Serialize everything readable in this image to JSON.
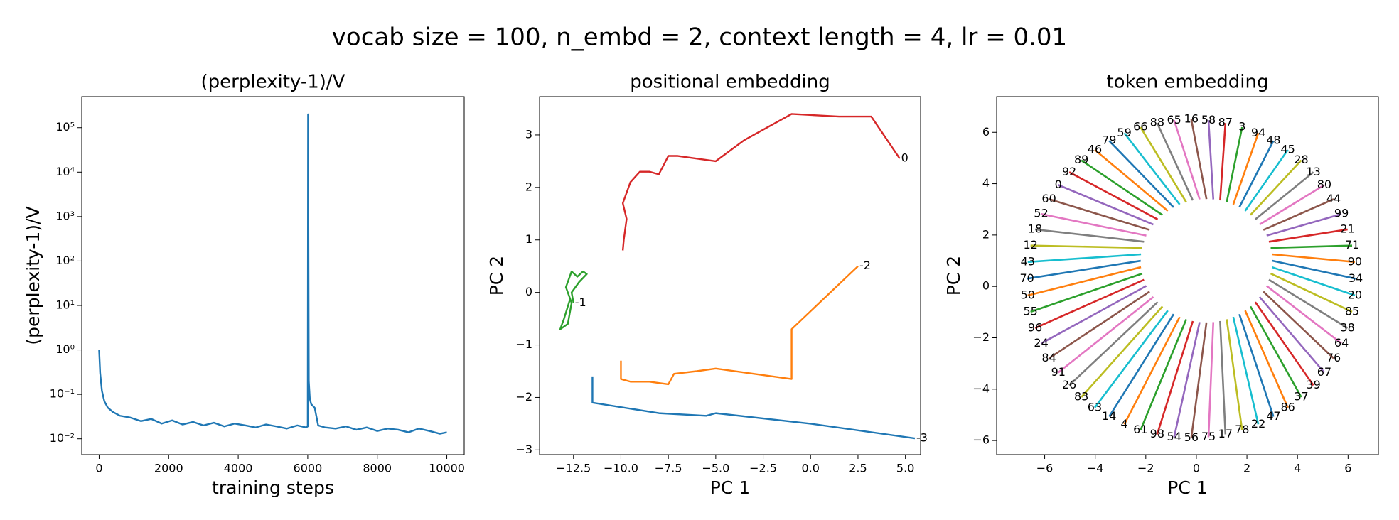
{
  "title": "vocab size = 100, n_embd = 2, context length = 4, lr = 0.01",
  "chart_data": [
    {
      "type": "line",
      "title": "(perplexity-1)/V",
      "xlabel": "training steps",
      "ylabel": "(perplexity-1)/V",
      "yscale": "log",
      "xlim": [
        -500,
        10500
      ],
      "ylim": [
        0.0044,
        500000
      ],
      "xticks": [
        0,
        2000,
        4000,
        6000,
        8000,
        10000
      ],
      "yticks": [
        {
          "value": 0.01,
          "label": "10⁻²"
        },
        {
          "value": 0.1,
          "label": "10⁻¹"
        },
        {
          "value": 1,
          "label": "10⁰"
        },
        {
          "value": 10,
          "label": "10¹"
        },
        {
          "value": 100,
          "label": "10²"
        },
        {
          "value": 1000,
          "label": "10³"
        },
        {
          "value": 10000,
          "label": "10⁴"
        },
        {
          "value": 100000,
          "label": "10⁵"
        }
      ],
      "end_labels": false,
      "series": [
        {
          "color": "#1f77b4",
          "x": [
            0,
            30,
            80,
            150,
            250,
            400,
            600,
            900,
            1200,
            1500,
            1800,
            2100,
            2400,
            2700,
            3000,
            3300,
            3600,
            3900,
            4200,
            4500,
            4800,
            5100,
            5400,
            5700,
            5950,
            6000,
            6010,
            6030,
            6060,
            6100,
            6200,
            6300,
            6500,
            6800,
            7100,
            7400,
            7700,
            8000,
            8300,
            8600,
            8900,
            9200,
            9500,
            9800,
            10000
          ],
          "values": [
            1.0,
            0.3,
            0.12,
            0.07,
            0.05,
            0.04,
            0.033,
            0.03,
            0.025,
            0.028,
            0.022,
            0.026,
            0.021,
            0.024,
            0.02,
            0.023,
            0.019,
            0.022,
            0.02,
            0.018,
            0.021,
            0.019,
            0.017,
            0.02,
            0.018,
            0.019,
            200000,
            0.2,
            0.08,
            0.06,
            0.05,
            0.02,
            0.018,
            0.017,
            0.019,
            0.016,
            0.018,
            0.015,
            0.017,
            0.016,
            0.014,
            0.017,
            0.015,
            0.013,
            0.014
          ]
        }
      ]
    },
    {
      "type": "line",
      "title": "positional embedding",
      "xlabel": "PC 1",
      "ylabel": "PC 2",
      "yscale": "linear",
      "xlim": [
        -14.29,
        5.8
      ],
      "ylim": [
        -3.09,
        3.73
      ],
      "xticks": [
        {
          "value": -12.5,
          "label": "−12.5"
        },
        {
          "value": -10,
          "label": "−10.0"
        },
        {
          "value": -7.5,
          "label": "−7.5"
        },
        {
          "value": -5,
          "label": "−5.0"
        },
        {
          "value": -2.5,
          "label": "−2.5"
        },
        {
          "value": 0,
          "label": "0.0"
        },
        {
          "value": 2.5,
          "label": "2.5"
        },
        {
          "value": 5,
          "label": "5.0"
        }
      ],
      "yticks": [
        {
          "value": -3,
          "label": "−3"
        },
        {
          "value": -2,
          "label": "−2"
        },
        {
          "value": -1,
          "label": "−1"
        },
        0,
        1,
        2,
        3
      ],
      "end_labels": true,
      "series": [
        {
          "name": "-3",
          "color": "#1f77b4",
          "x": [
            -11.5,
            -11.5,
            -8,
            -5.5,
            -5,
            0,
            5.5
          ],
          "values": [
            -1.6,
            -2.1,
            -2.3,
            -2.35,
            -2.3,
            -2.5,
            -2.78
          ]
        },
        {
          "name": "-2",
          "color": "#ff7f0e",
          "x": [
            -10,
            -10,
            -9.5,
            -8.5,
            -7.5,
            -7.2,
            -6,
            -5,
            -3,
            -1,
            -1,
            2.5
          ],
          "values": [
            -1.3,
            -1.65,
            -1.7,
            -1.7,
            -1.75,
            -1.55,
            -1.5,
            -1.45,
            -1.55,
            -1.65,
            -0.7,
            0.5
          ]
        },
        {
          "name": "-1",
          "color": "#2ca02c",
          "x": [
            -12.7,
            -13,
            -13.2,
            -12.8,
            -12.6,
            -12.9,
            -12.6,
            -12.3,
            -12,
            -11.8,
            -12.2,
            -12.6,
            -12.5
          ],
          "values": [
            -0.15,
            -0.5,
            -0.7,
            -0.6,
            -0.2,
            0.1,
            0.4,
            0.3,
            0.4,
            0.35,
            0.2,
            0.0,
            -0.2
          ]
        },
        {
          "name": "0",
          "color": "#d62728",
          "x": [
            -9.9,
            -9.85,
            -9.7,
            -9.9,
            -9.5,
            -9,
            -8.5,
            -8,
            -7.5,
            -7,
            -5,
            -3.5,
            -1,
            1.5,
            3.2,
            4.7
          ],
          "values": [
            0.8,
            1.0,
            1.4,
            1.7,
            2.1,
            2.3,
            2.3,
            2.25,
            2.6,
            2.6,
            2.5,
            2.9,
            3.4,
            3.35,
            3.35,
            2.55
          ]
        }
      ]
    },
    {
      "type": "line",
      "title": "token embedding",
      "xlabel": "PC 1",
      "ylabel": "PC 2",
      "yscale": "linear",
      "xlim": [
        -7.9,
        7.2
      ],
      "ylim": [
        -6.55,
        7.39
      ],
      "xticks": [
        {
          "value": -6,
          "label": "−6"
        },
        {
          "value": -4,
          "label": "−4"
        },
        {
          "value": -2,
          "label": "−2"
        },
        0,
        2,
        4,
        6
      ],
      "yticks": [
        {
          "value": -6,
          "label": "−6"
        },
        {
          "value": -4,
          "label": "−4"
        },
        {
          "value": -2,
          "label": "−2"
        },
        0,
        2,
        4,
        6
      ],
      "end_labels": true,
      "series": [
        {
          "name": "34",
          "color": "#1f77b4",
          "x": [
            3.0,
            6.3
          ],
          "values": [
            1.0,
            0.3
          ]
        },
        {
          "name": "90",
          "color": "#ff7f0e",
          "x": [
            2.99,
            6.27
          ],
          "values": [
            1.25,
            0.95
          ]
        },
        {
          "name": "71",
          "color": "#2ca02c",
          "x": [
            2.94,
            6.16
          ],
          "values": [
            1.5,
            1.59
          ]
        },
        {
          "name": "21",
          "color": "#d62728",
          "x": [
            2.87,
            5.98
          ],
          "values": [
            1.74,
            2.22
          ]
        },
        {
          "name": "99",
          "color": "#9467bd",
          "x": [
            2.78,
            5.74
          ],
          "values": [
            1.98,
            2.82
          ]
        },
        {
          "name": "44",
          "color": "#8c564b",
          "x": [
            2.65,
            5.43
          ],
          "values": [
            2.2,
            3.4
          ]
        },
        {
          "name": "80",
          "color": "#e377c2",
          "x": [
            2.5,
            5.06
          ],
          "values": [
            2.41,
            3.95
          ]
        },
        {
          "name": "13",
          "color": "#7f7f7f",
          "x": [
            2.33,
            4.63
          ],
          "values": [
            2.61,
            4.45
          ]
        },
        {
          "name": "28",
          "color": "#bcbd22",
          "x": [
            2.14,
            4.15
          ],
          "values": [
            2.78,
            4.91
          ]
        },
        {
          "name": "45",
          "color": "#17becf",
          "x": [
            1.93,
            3.62
          ],
          "values": [
            2.94,
            5.32
          ]
        },
        {
          "name": "48",
          "color": "#1f77b4",
          "x": [
            1.7,
            3.05
          ],
          "values": [
            3.08,
            5.67
          ]
        },
        {
          "name": "94",
          "color": "#ff7f0e",
          "x": [
            1.46,
            2.45
          ],
          "values": [
            3.19,
            5.97
          ]
        },
        {
          "name": "3",
          "color": "#2ca02c",
          "x": [
            1.2,
            1.81
          ],
          "values": [
            3.28,
            6.2
          ]
        },
        {
          "name": "87",
          "color": "#d62728",
          "x": [
            0.94,
            1.15
          ],
          "values": [
            3.35,
            6.36
          ]
        },
        {
          "name": "58",
          "color": "#9467bd",
          "x": [
            0.67,
            0.48
          ],
          "values": [
            3.39,
            6.47
          ]
        },
        {
          "name": "16",
          "color": "#8c564b",
          "x": [
            0.4,
            -0.2
          ],
          "values": [
            3.4,
            6.5
          ]
        },
        {
          "name": "65",
          "color": "#e377c2",
          "x": [
            0.13,
            -0.88
          ],
          "values": [
            3.39,
            6.47
          ]
        },
        {
          "name": "88",
          "color": "#7f7f7f",
          "x": [
            -0.14,
            -1.55
          ],
          "values": [
            3.35,
            6.36
          ]
        },
        {
          "name": "66",
          "color": "#bcbd22",
          "x": [
            -0.4,
            -2.21
          ],
          "values": [
            3.28,
            6.2
          ]
        },
        {
          "name": "59",
          "color": "#17becf",
          "x": [
            -0.66,
            -2.85
          ],
          "values": [
            3.19,
            5.97
          ]
        },
        {
          "name": "79",
          "color": "#1f77b4",
          "x": [
            -0.9,
            -3.45
          ],
          "values": [
            3.08,
            5.67
          ]
        },
        {
          "name": "46",
          "color": "#ff7f0e",
          "x": [
            -1.13,
            -4.02
          ],
          "values": [
            2.94,
            5.32
          ]
        },
        {
          "name": "89",
          "color": "#2ca02c",
          "x": [
            -1.34,
            -4.55
          ],
          "values": [
            2.78,
            4.91
          ]
        },
        {
          "name": "92",
          "color": "#d62728",
          "x": [
            -1.53,
            -5.03
          ],
          "values": [
            2.61,
            4.45
          ]
        },
        {
          "name": "0",
          "color": "#9467bd",
          "x": [
            -1.7,
            -5.46
          ],
          "values": [
            2.41,
            3.95
          ]
        },
        {
          "name": "60",
          "color": "#8c564b",
          "x": [
            -1.85,
            -5.83
          ],
          "values": [
            2.2,
            3.4
          ]
        },
        {
          "name": "52",
          "color": "#e377c2",
          "x": [
            -1.98,
            -6.14
          ],
          "values": [
            1.98,
            2.82
          ]
        },
        {
          "name": "18",
          "color": "#7f7f7f",
          "x": [
            -2.07,
            -6.38
          ],
          "values": [
            1.74,
            2.22
          ]
        },
        {
          "name": "12",
          "color": "#bcbd22",
          "x": [
            -2.14,
            -6.56
          ],
          "values": [
            1.5,
            1.59
          ]
        },
        {
          "name": "43",
          "color": "#17becf",
          "x": [
            -2.19,
            -6.67
          ],
          "values": [
            1.25,
            0.95
          ]
        },
        {
          "name": "70",
          "color": "#1f77b4",
          "x": [
            -2.2,
            -6.7
          ],
          "values": [
            1.0,
            0.3
          ]
        },
        {
          "name": "50",
          "color": "#ff7f0e",
          "x": [
            -2.19,
            -6.67
          ],
          "values": [
            0.75,
            -0.35
          ]
        },
        {
          "name": "55",
          "color": "#2ca02c",
          "x": [
            -2.14,
            -6.56
          ],
          "values": [
            0.5,
            -0.99
          ]
        },
        {
          "name": "96",
          "color": "#d62728",
          "x": [
            -2.07,
            -6.38
          ],
          "values": [
            0.26,
            -1.62
          ]
        },
        {
          "name": "24",
          "color": "#9467bd",
          "x": [
            -1.98,
            -6.14
          ],
          "values": [
            0.02,
            -2.22
          ]
        },
        {
          "name": "84",
          "color": "#8c564b",
          "x": [
            -1.85,
            -5.83
          ],
          "values": [
            -0.2,
            -2.8
          ]
        },
        {
          "name": "91",
          "color": "#e377c2",
          "x": [
            -1.7,
            -5.46
          ],
          "values": [
            -0.41,
            -3.35
          ]
        },
        {
          "name": "26",
          "color": "#7f7f7f",
          "x": [
            -1.53,
            -5.03
          ],
          "values": [
            -0.61,
            -3.85
          ]
        },
        {
          "name": "83",
          "color": "#bcbd22",
          "x": [
            -1.34,
            -4.55
          ],
          "values": [
            -0.78,
            -4.31
          ]
        },
        {
          "name": "63",
          "color": "#17becf",
          "x": [
            -1.13,
            -4.02
          ],
          "values": [
            -0.94,
            -4.72
          ]
        },
        {
          "name": "14",
          "color": "#1f77b4",
          "x": [
            -0.9,
            -3.45
          ],
          "values": [
            -1.08,
            -5.07
          ]
        },
        {
          "name": "4",
          "color": "#ff7f0e",
          "x": [
            -0.66,
            -2.85
          ],
          "values": [
            -1.19,
            -5.37
          ]
        },
        {
          "name": "61",
          "color": "#2ca02c",
          "x": [
            -0.4,
            -2.21
          ],
          "values": [
            -1.28,
            -5.6
          ]
        },
        {
          "name": "98",
          "color": "#d62728",
          "x": [
            -0.14,
            -1.55
          ],
          "values": [
            -1.35,
            -5.76
          ]
        },
        {
          "name": "54",
          "color": "#9467bd",
          "x": [
            0.13,
            -0.88
          ],
          "values": [
            -1.39,
            -5.87
          ]
        },
        {
          "name": "56",
          "color": "#8c564b",
          "x": [
            0.4,
            -0.2
          ],
          "values": [
            -1.4,
            -5.9
          ]
        },
        {
          "name": "75",
          "color": "#e377c2",
          "x": [
            0.67,
            0.48
          ],
          "values": [
            -1.39,
            -5.87
          ]
        },
        {
          "name": "17",
          "color": "#7f7f7f",
          "x": [
            0.94,
            1.15
          ],
          "values": [
            -1.35,
            -5.76
          ]
        },
        {
          "name": "78",
          "color": "#bcbd22",
          "x": [
            1.2,
            1.81
          ],
          "values": [
            -1.28,
            -5.6
          ]
        },
        {
          "name": "22",
          "color": "#17becf",
          "x": [
            1.46,
            2.45
          ],
          "values": [
            -1.19,
            -5.37
          ]
        },
        {
          "name": "47",
          "color": "#1f77b4",
          "x": [
            1.7,
            3.05
          ],
          "values": [
            -1.08,
            -5.07
          ]
        },
        {
          "name": "86",
          "color": "#ff7f0e",
          "x": [
            1.93,
            3.62
          ],
          "values": [
            -0.94,
            -4.72
          ]
        },
        {
          "name": "37",
          "color": "#2ca02c",
          "x": [
            2.14,
            4.15
          ],
          "values": [
            -0.78,
            -4.31
          ]
        },
        {
          "name": "39",
          "color": "#d62728",
          "x": [
            2.33,
            4.63
          ],
          "values": [
            -0.61,
            -3.85
          ]
        },
        {
          "name": "67",
          "color": "#9467bd",
          "x": [
            2.5,
            5.06
          ],
          "values": [
            -0.41,
            -3.35
          ]
        },
        {
          "name": "76",
          "color": "#8c564b",
          "x": [
            2.65,
            5.43
          ],
          "values": [
            -0.2,
            -2.8
          ]
        },
        {
          "name": "64",
          "color": "#e377c2",
          "x": [
            2.78,
            5.74
          ],
          "values": [
            0.02,
            -2.22
          ]
        },
        {
          "name": "38",
          "color": "#7f7f7f",
          "x": [
            2.87,
            5.98
          ],
          "values": [
            0.26,
            -1.62
          ]
        },
        {
          "name": "85",
          "color": "#bcbd22",
          "x": [
            2.94,
            6.16
          ],
          "values": [
            0.5,
            -0.99
          ]
        },
        {
          "name": "20",
          "color": "#17becf",
          "x": [
            2.99,
            6.27
          ],
          "values": [
            0.75,
            -0.35
          ]
        }
      ]
    }
  ]
}
